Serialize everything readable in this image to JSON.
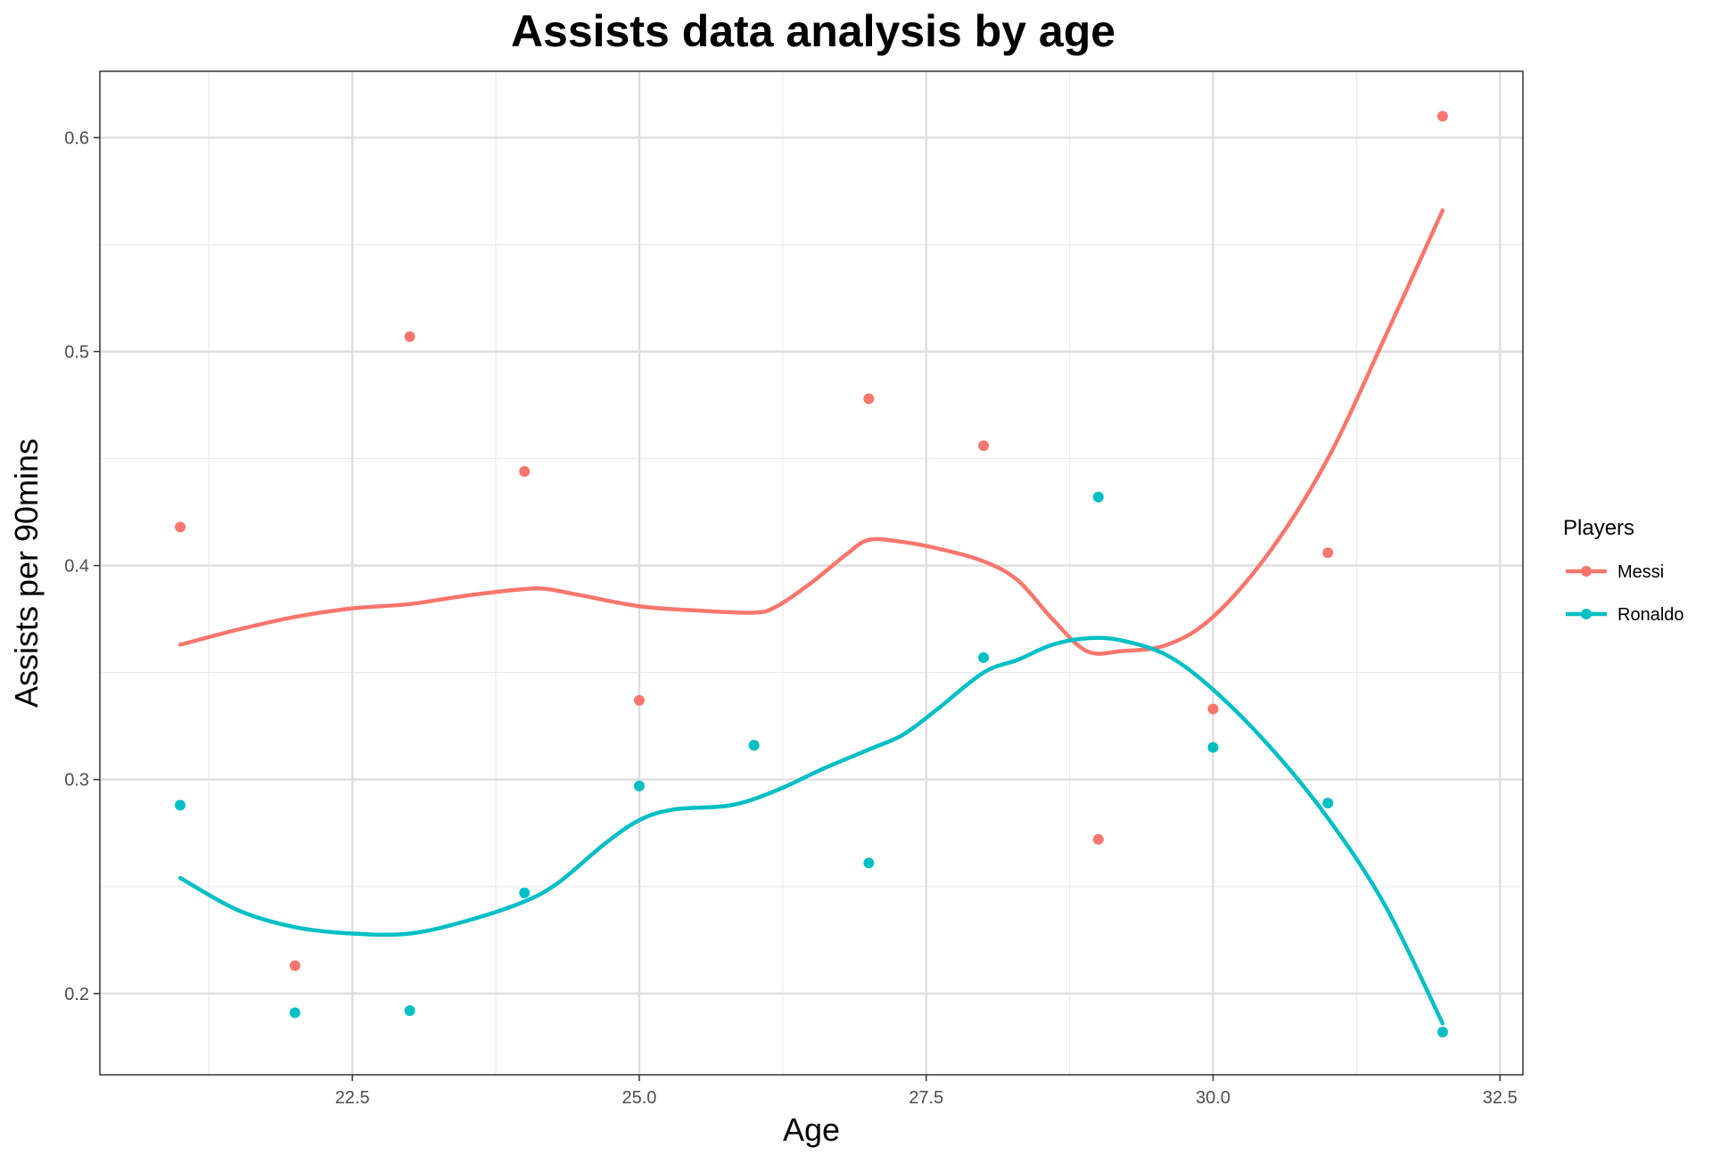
{
  "chart_data": {
    "type": "line",
    "title": "Assists data analysis by age",
    "xlabel": "Age",
    "ylabel": "Assists per 90mins",
    "xlim": [
      20.3,
      32.7
    ],
    "ylim": [
      0.162,
      0.631
    ],
    "x_ticks": [
      "22.5",
      "25.0",
      "27.5",
      "30.0",
      "32.5"
    ],
    "y_ticks": [
      "0.2",
      "0.3",
      "0.4",
      "0.5",
      "0.6"
    ],
    "grid": true,
    "legend": {
      "title": "Players",
      "position": "right"
    },
    "series": [
      {
        "name": "Messi",
        "color": "#F8766D",
        "points": {
          "x": [
            21,
            22,
            23,
            24,
            25,
            26,
            27,
            28,
            29,
            30,
            31,
            32
          ],
          "y": [
            0.418,
            0.213,
            0.507,
            0.444,
            0.337,
            0.316,
            0.478,
            0.456,
            0.272,
            0.333,
            0.406,
            0.61
          ]
        },
        "smooth": {
          "x": [
            21,
            21.5,
            22,
            22.5,
            23,
            23.5,
            24,
            24.2,
            24.5,
            25,
            25.5,
            26,
            26.2,
            26.5,
            26.8,
            27,
            27.3,
            27.6,
            28,
            28.3,
            28.6,
            28.9,
            29.2,
            29.6,
            30,
            30.5,
            31,
            31.5,
            32
          ],
          "y": [
            0.363,
            0.37,
            0.376,
            0.38,
            0.382,
            0.386,
            0.389,
            0.389,
            0.386,
            0.381,
            0.379,
            0.378,
            0.381,
            0.392,
            0.405,
            0.412,
            0.411,
            0.408,
            0.402,
            0.393,
            0.375,
            0.36,
            0.36,
            0.363,
            0.376,
            0.407,
            0.45,
            0.507,
            0.566
          ]
        }
      },
      {
        "name": "Ronaldo",
        "color": "#00BFC4",
        "points": {
          "x": [
            21,
            22,
            23,
            24,
            25,
            26,
            27,
            28,
            29,
            30,
            31,
            32
          ],
          "y": [
            0.288,
            0.191,
            0.192,
            0.247,
            0.297,
            0.316,
            0.261,
            0.357,
            0.432,
            0.315,
            0.289,
            0.182
          ]
        },
        "smooth": {
          "x": [
            21,
            21.5,
            22,
            22.5,
            23,
            23.5,
            24,
            24.3,
            24.7,
            25,
            25.3,
            25.8,
            26.2,
            26.6,
            27,
            27.3,
            27.6,
            28,
            28.3,
            28.6,
            28.9,
            29.2,
            29.6,
            30,
            30.5,
            31,
            31.5,
            32
          ],
          "y": [
            0.254,
            0.239,
            0.231,
            0.228,
            0.228,
            0.234,
            0.243,
            0.252,
            0.27,
            0.281,
            0.286,
            0.288,
            0.295,
            0.305,
            0.314,
            0.321,
            0.333,
            0.35,
            0.356,
            0.363,
            0.366,
            0.365,
            0.358,
            0.342,
            0.315,
            0.282,
            0.241,
            0.186
          ]
        }
      }
    ]
  }
}
